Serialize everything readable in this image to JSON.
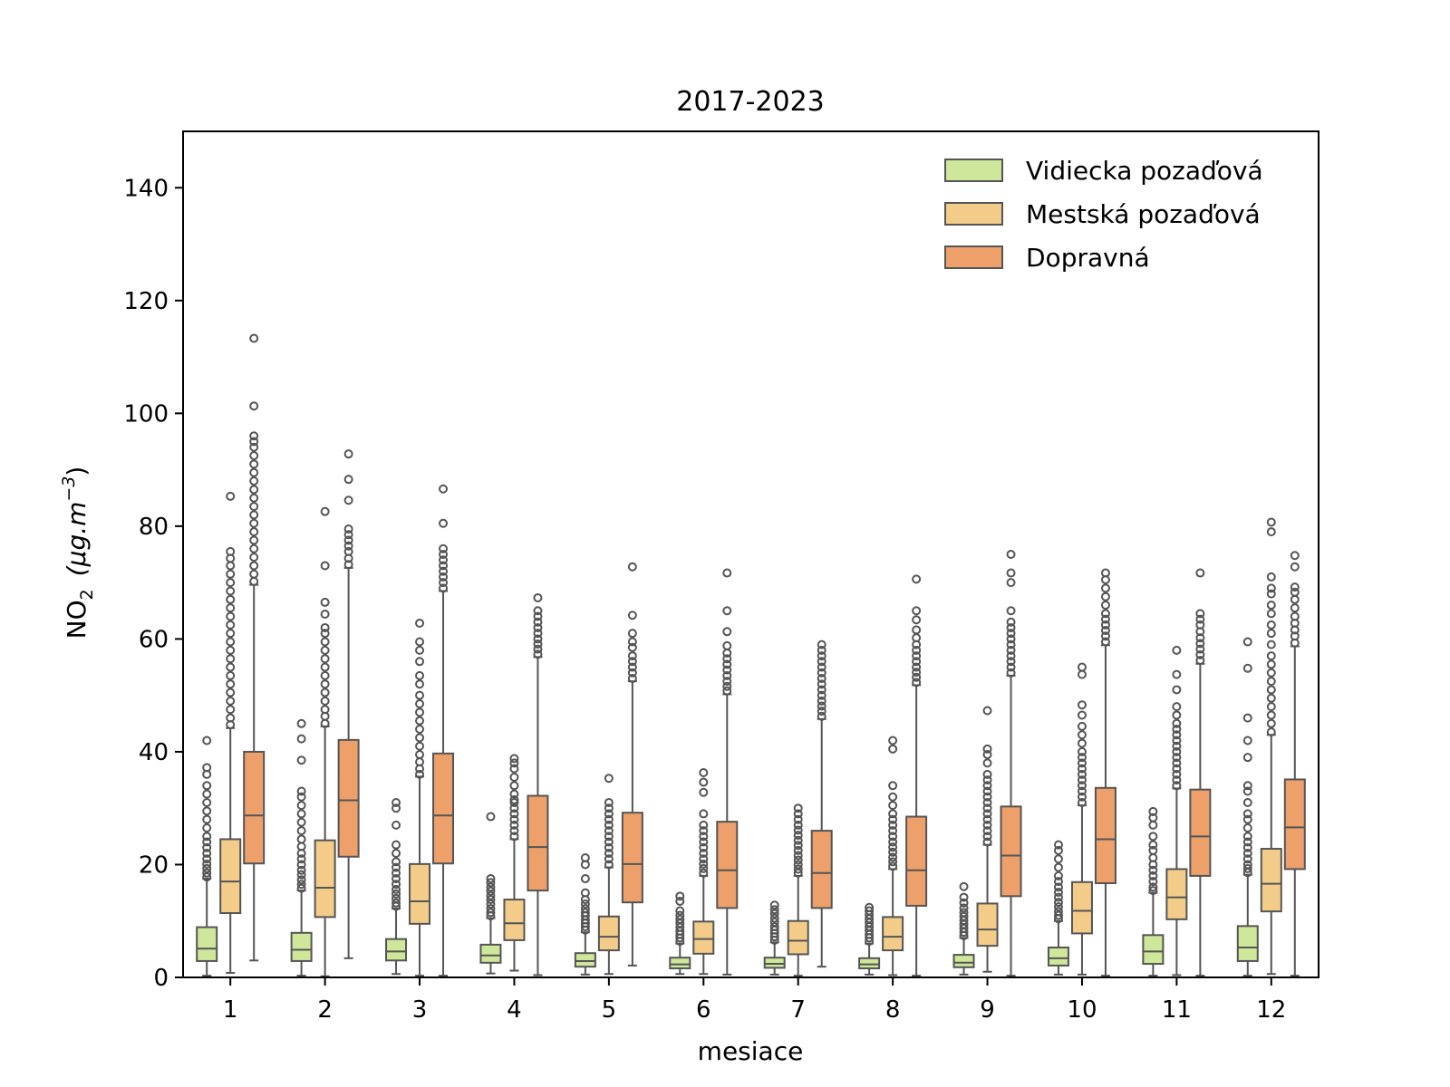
{
  "chart_data": {
    "type": "box",
    "title": "2017-2023",
    "xlabel": "mesiace",
    "ylabel": {
      "base": "NO",
      "subscript": "2",
      "unit_prefix": "(μg.m",
      "unit_superscript": "−3",
      "unit_suffix": ")"
    },
    "ylim": [
      0,
      150
    ],
    "yticks": [
      0,
      20,
      40,
      60,
      80,
      100,
      120,
      140
    ],
    "categories": [
      "1",
      "2",
      "3",
      "4",
      "5",
      "6",
      "7",
      "8",
      "9",
      "10",
      "11",
      "12"
    ],
    "legend_position": "top-right",
    "grid": false,
    "series": [
      {
        "name": "Vidiecka pozaďová",
        "color": "#cfe79a",
        "boxes": [
          {
            "whislo": 0.3,
            "q1": 2.9,
            "med": 5.1,
            "q3": 8.9,
            "whishi": 17.5,
            "fliers": [
              17.8,
              18.5,
              19.3,
              20.1,
              21,
              22,
              23,
              24,
              25,
              26.5,
              28,
              29.5,
              31,
              32.5,
              34,
              36,
              37.2,
              42
            ]
          },
          {
            "whislo": 0.3,
            "q1": 2.9,
            "med": 4.9,
            "q3": 7.9,
            "whishi": 15.4,
            "fliers": [
              15.8,
              16.5,
              17.3,
              18.2,
              19,
              20,
              21,
              22,
              23.2,
              24.5,
              26,
              27.5,
              29,
              30.5,
              32,
              33,
              38.5,
              42.3,
              45
            ]
          },
          {
            "whislo": 0.6,
            "q1": 3.0,
            "med": 4.6,
            "q3": 6.8,
            "whishi": 12.2,
            "fliers": [
              12.6,
              13.2,
              14,
              14.8,
              15.6,
              16.5,
              17.5,
              18.5,
              19.5,
              20.5,
              22,
              23.5,
              27,
              30,
              31
            ]
          },
          {
            "whislo": 0.7,
            "q1": 2.6,
            "med": 3.9,
            "q3": 5.8,
            "whishi": 10.5,
            "fliers": [
              10.9,
              11.5,
              12.2,
              13,
              13.8,
              14.5,
              15.3,
              16,
              16.8,
              17.5,
              28.5
            ]
          },
          {
            "whislo": 0.5,
            "q1": 1.9,
            "med": 2.9,
            "q3": 4.3,
            "whishi": 8.0,
            "fliers": [
              8.4,
              9,
              9.6,
              10.2,
              10.9,
              11.5,
              12.2,
              13,
              13.8,
              15,
              17.5,
              20,
              21.2
            ]
          },
          {
            "whislo": 0.6,
            "q1": 1.6,
            "med": 2.3,
            "q3": 3.5,
            "whishi": 6.0,
            "fliers": [
              6.4,
              7,
              7.6,
              8.2,
              8.9,
              9.6,
              10.3,
              11,
              11.8,
              13.5,
              14.4
            ]
          },
          {
            "whislo": 0.5,
            "q1": 1.7,
            "med": 2.4,
            "q3": 3.5,
            "whishi": 6.2,
            "fliers": [
              6.6,
              7.2,
              7.8,
              8.4,
              9,
              9.8,
              10.5,
              11.3,
              12,
              12.8
            ]
          },
          {
            "whislo": 0.5,
            "q1": 1.6,
            "med": 2.3,
            "q3": 3.4,
            "whishi": 6.0,
            "fliers": [
              6.4,
              7,
              7.6,
              8.3,
              9,
              9.7,
              10.4,
              11.1,
              11.8,
              12.4
            ]
          },
          {
            "whislo": 0.5,
            "q1": 1.8,
            "med": 2.6,
            "q3": 4.0,
            "whishi": 7.0,
            "fliers": [
              7.4,
              8,
              8.7,
              9.4,
              10.1,
              10.8,
              11.5,
              12.3,
              13.2,
              14.2,
              16.1
            ]
          },
          {
            "whislo": 0.5,
            "q1": 2.1,
            "med": 3.4,
            "q3": 5.3,
            "whishi": 10.0,
            "fliers": [
              10.4,
              11,
              11.7,
              12.5,
              13.3,
              14.2,
              15.1,
              16,
              17,
              18,
              19.5,
              21,
              22.5,
              23.5
            ]
          },
          {
            "whislo": 0.3,
            "q1": 2.4,
            "med": 4.6,
            "q3": 7.5,
            "whishi": 15.0,
            "fliers": [
              15.4,
              16,
              17,
              18,
              19,
              20,
              21.2,
              22.5,
              23.5,
              25,
              27,
              28.3,
              29.4
            ]
          },
          {
            "whislo": 0.3,
            "q1": 2.9,
            "med": 5.3,
            "q3": 9.1,
            "whishi": 18.2,
            "fliers": [
              18.6,
              19.3,
              20,
              21,
              22,
              23,
              24,
              25,
              26.5,
              28,
              29,
              31,
              33,
              34,
              39,
              42,
              46,
              54.8,
              59.5
            ]
          }
        ]
      },
      {
        "name": "Mestská pozaďová",
        "color": "#f4cc89",
        "boxes": [
          {
            "whislo": 0.8,
            "q1": 11.4,
            "med": 17.0,
            "q3": 24.5,
            "whishi": 44.2,
            "fliers": [
              44.8,
              46,
              47.5,
              49,
              50.5,
              52,
              53.5,
              55,
              56.5,
              58,
              59.5,
              61,
              62.5,
              64,
              65.5,
              67,
              68.5,
              70,
              71.5,
              73,
              74.3,
              75.5,
              85.3
            ]
          },
          {
            "whislo": 0.2,
            "q1": 10.7,
            "med": 15.9,
            "q3": 24.3,
            "whishi": 44.5,
            "fliers": [
              45,
              46.3,
              47.5,
              49,
              50.5,
              52,
              53.5,
              55,
              56.5,
              58,
              59.5,
              61,
              62,
              64.4,
              66.5,
              73,
              82.6
            ]
          },
          {
            "whislo": 0.3,
            "q1": 9.5,
            "med": 13.5,
            "q3": 20.1,
            "whishi": 35.6,
            "fliers": [
              36,
              37,
              38.2,
              39.5,
              41,
              42.5,
              44,
              45.5,
              47,
              48.5,
              50,
              52,
              53.5,
              56,
              58,
              59.5,
              62.8
            ]
          },
          {
            "whislo": 1.2,
            "q1": 6.6,
            "med": 9.6,
            "q3": 13.8,
            "whishi": 24.5,
            "fliers": [
              25,
              26,
              27,
              28,
              29,
              30,
              31,
              31.5,
              32.5,
              34,
              35.5,
              37,
              38,
              38.8
            ]
          },
          {
            "whislo": 0.6,
            "q1": 4.8,
            "med": 7.2,
            "q3": 10.8,
            "whishi": 19.5,
            "fliers": [
              20,
              21,
              22,
              23,
              24,
              25,
              26,
              27,
              28,
              29,
              30,
              31,
              35.3
            ]
          },
          {
            "whislo": 0.6,
            "q1": 4.2,
            "med": 6.8,
            "q3": 9.9,
            "whishi": 18.0,
            "fliers": [
              18.5,
              19.3,
              20.1,
              21,
              22,
              23,
              24,
              25,
              26,
              27,
              29,
              32.8,
              34.6,
              36.3
            ]
          },
          {
            "whislo": 0.3,
            "q1": 4.1,
            "med": 6.5,
            "q3": 10.0,
            "whishi": 18.0,
            "fliers": [
              18.5,
              19.2,
              20,
              20.8,
              21.6,
              22.5,
              23.4,
              24.3,
              25.2,
              26.1,
              27,
              28,
              29,
              30
            ]
          },
          {
            "whislo": 0.4,
            "q1": 4.8,
            "med": 7.2,
            "q3": 10.7,
            "whishi": 19.2,
            "fliers": [
              19.7,
              20.5,
              21.3,
              22.2,
              23.1,
              24,
              25,
              26,
              27,
              28,
              29,
              30.5,
              32,
              34,
              40.5,
              42
            ]
          },
          {
            "whislo": 1.0,
            "q1": 5.6,
            "med": 8.5,
            "q3": 13.1,
            "whishi": 23.5,
            "fliers": [
              24,
              25,
              26,
              27,
              28,
              29,
              30,
              31,
              32,
              33,
              34,
              35,
              36,
              38,
              39.5,
              40.5,
              47.3
            ]
          },
          {
            "whislo": 0.5,
            "q1": 7.8,
            "med": 11.8,
            "q3": 16.9,
            "whishi": 30.5,
            "fliers": [
              31,
              32,
              33,
              34,
              35,
              36,
              37,
              38,
              39,
              40,
              41.5,
              43,
              44.5,
              46.5,
              48.3,
              53.7,
              55
            ]
          },
          {
            "whislo": 0.4,
            "q1": 10.3,
            "med": 14.2,
            "q3": 19.2,
            "whishi": 33.5,
            "fliers": [
              34,
              35,
              36,
              37,
              38,
              39,
              40,
              41,
              42,
              43,
              44,
              45,
              46.5,
              48,
              51,
              53.7,
              58
            ]
          },
          {
            "whislo": 0.6,
            "q1": 11.7,
            "med": 16.6,
            "q3": 22.8,
            "whishi": 43.0,
            "fliers": [
              43.5,
              45,
              46.5,
              48,
              49.5,
              51,
              52.5,
              54,
              55.5,
              57,
              59,
              61,
              62.5,
              64.5,
              66,
              68,
              69,
              71,
              79,
              80.7
            ]
          }
        ]
      },
      {
        "name": "Dopravná",
        "color": "#eda06a",
        "boxes": [
          {
            "whislo": 3.0,
            "q1": 20.2,
            "med": 28.7,
            "q3": 40.0,
            "whishi": 69.6,
            "fliers": [
              70.2,
              71.5,
              73,
              74.5,
              76,
              77.5,
              79,
              80.5,
              82,
              83.5,
              85,
              86.5,
              88,
              89.5,
              91,
              92.5,
              94,
              95,
              96,
              101.3,
              113.3
            ]
          },
          {
            "whislo": 3.4,
            "q1": 21.4,
            "med": 31.4,
            "q3": 42.1,
            "whishi": 72.6,
            "fliers": [
              73.2,
              74.3,
              75.5,
              76.5,
              77.5,
              78.5,
              79.5,
              84.6,
              88.3,
              92.8
            ]
          },
          {
            "whislo": 0.3,
            "q1": 20.2,
            "med": 28.7,
            "q3": 39.7,
            "whishi": 68.5,
            "fliers": [
              69,
              70,
              71,
              72,
              73,
              74,
              75,
              76,
              80.5,
              86.6
            ]
          },
          {
            "whislo": 0.4,
            "q1": 15.4,
            "med": 23.1,
            "q3": 32.2,
            "whishi": 56.8,
            "fliers": [
              57.3,
              58.2,
              59.1,
              60,
              61,
              62,
              63,
              64,
              65,
              67.3
            ]
          },
          {
            "whislo": 2.1,
            "q1": 13.3,
            "med": 20.1,
            "q3": 29.2,
            "whishi": 52.5,
            "fliers": [
              53,
              54,
              55,
              56,
              57,
              58.5,
              59.5,
              61,
              64.2,
              72.8
            ]
          },
          {
            "whislo": 0.5,
            "q1": 12.3,
            "med": 19.0,
            "q3": 27.6,
            "whishi": 50.2,
            "fliers": [
              50.8,
              51.6,
              52.5,
              53.5,
              54.5,
              55.5,
              56.5,
              57.5,
              58.8,
              61.3,
              65,
              71.7
            ]
          },
          {
            "whislo": 1.9,
            "q1": 12.3,
            "med": 18.5,
            "q3": 26.0,
            "whishi": 45.8,
            "fliers": [
              46.3,
              47.2,
              48.1,
              49,
              50,
              51,
              52,
              53,
              54,
              55,
              56,
              57,
              58,
              59
            ]
          },
          {
            "whislo": 0.3,
            "q1": 12.7,
            "med": 19.0,
            "q3": 28.5,
            "whishi": 51.8,
            "fliers": [
              52.3,
              53.2,
              54.1,
              55,
              56,
              57,
              58,
              59,
              60.2,
              61.6,
              63.4,
              65,
              70.6
            ]
          },
          {
            "whislo": 0.3,
            "q1": 14.4,
            "med": 21.6,
            "q3": 30.3,
            "whishi": 53.5,
            "fliers": [
              54,
              55,
              56,
              57,
              58,
              59,
              60,
              61,
              62,
              63,
              65,
              70,
              71.7,
              75
            ]
          },
          {
            "whislo": 0.3,
            "q1": 16.7,
            "med": 24.5,
            "q3": 33.6,
            "whishi": 58.9,
            "fliers": [
              59.5,
              60.5,
              61.5,
              62.5,
              63.5,
              64.5,
              66,
              67.5,
              69,
              70.5,
              71.7
            ]
          },
          {
            "whislo": 0.3,
            "q1": 18.0,
            "med": 25.0,
            "q3": 33.3,
            "whishi": 55.6,
            "fliers": [
              56.2,
              57.2,
              58.2,
              59.2,
              60.2,
              61.3,
              62.5,
              63.5,
              64.5,
              71.7
            ]
          },
          {
            "whislo": 0.3,
            "q1": 19.2,
            "med": 26.6,
            "q3": 35.1,
            "whishi": 58.7,
            "fliers": [
              59.3,
              60.5,
              61.6,
              62.8,
              64,
              65.5,
              67,
              68.3,
              69.2,
              72.8,
              74.8
            ]
          }
        ]
      }
    ]
  }
}
